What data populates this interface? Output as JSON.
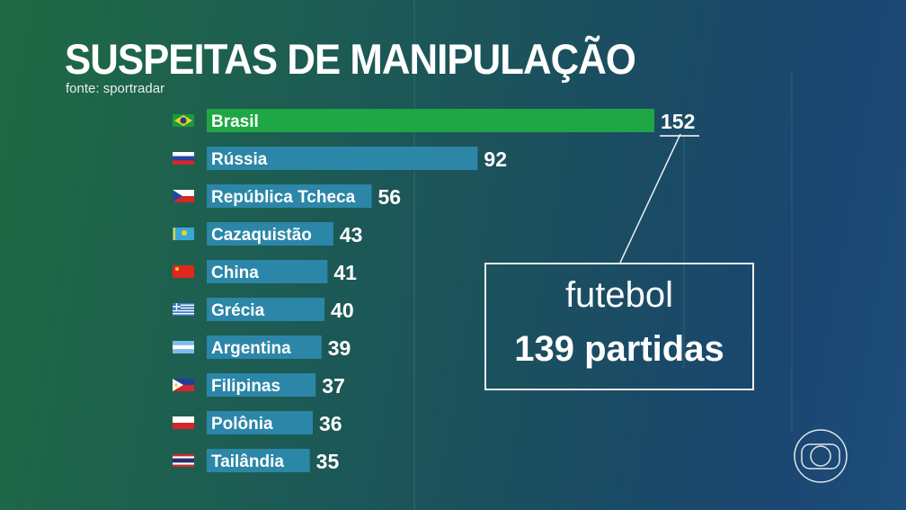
{
  "title": "SUSPEITAS DE MANIPULAÇÃO",
  "subtitle": "fonte: sportradar",
  "chart_data": {
    "type": "bar",
    "orientation": "horizontal",
    "title": "SUSPEITAS DE MANIPULAÇÃO",
    "categories": [
      "Brasil",
      "Rússia",
      "República Tcheca",
      "Cazaquistão",
      "China",
      "Grécia",
      "Argentina",
      "Filipinas",
      "Polônia",
      "Tailândia"
    ],
    "values": [
      152,
      92,
      56,
      43,
      41,
      40,
      39,
      37,
      36,
      35
    ],
    "flags": [
      "brazil",
      "russia",
      "czechia",
      "kazakhstan",
      "china",
      "greece",
      "argentina",
      "philippines",
      "poland",
      "thailand"
    ],
    "highlight": "Brasil",
    "colors": {
      "highlight": "#1fa645",
      "bar": "#2b86a8"
    },
    "xlim": [
      0,
      152
    ],
    "grid": false,
    "legend": "none"
  },
  "callout": {
    "line1": "futebol",
    "line2": "139 partidas"
  },
  "logo": "globo-icon"
}
